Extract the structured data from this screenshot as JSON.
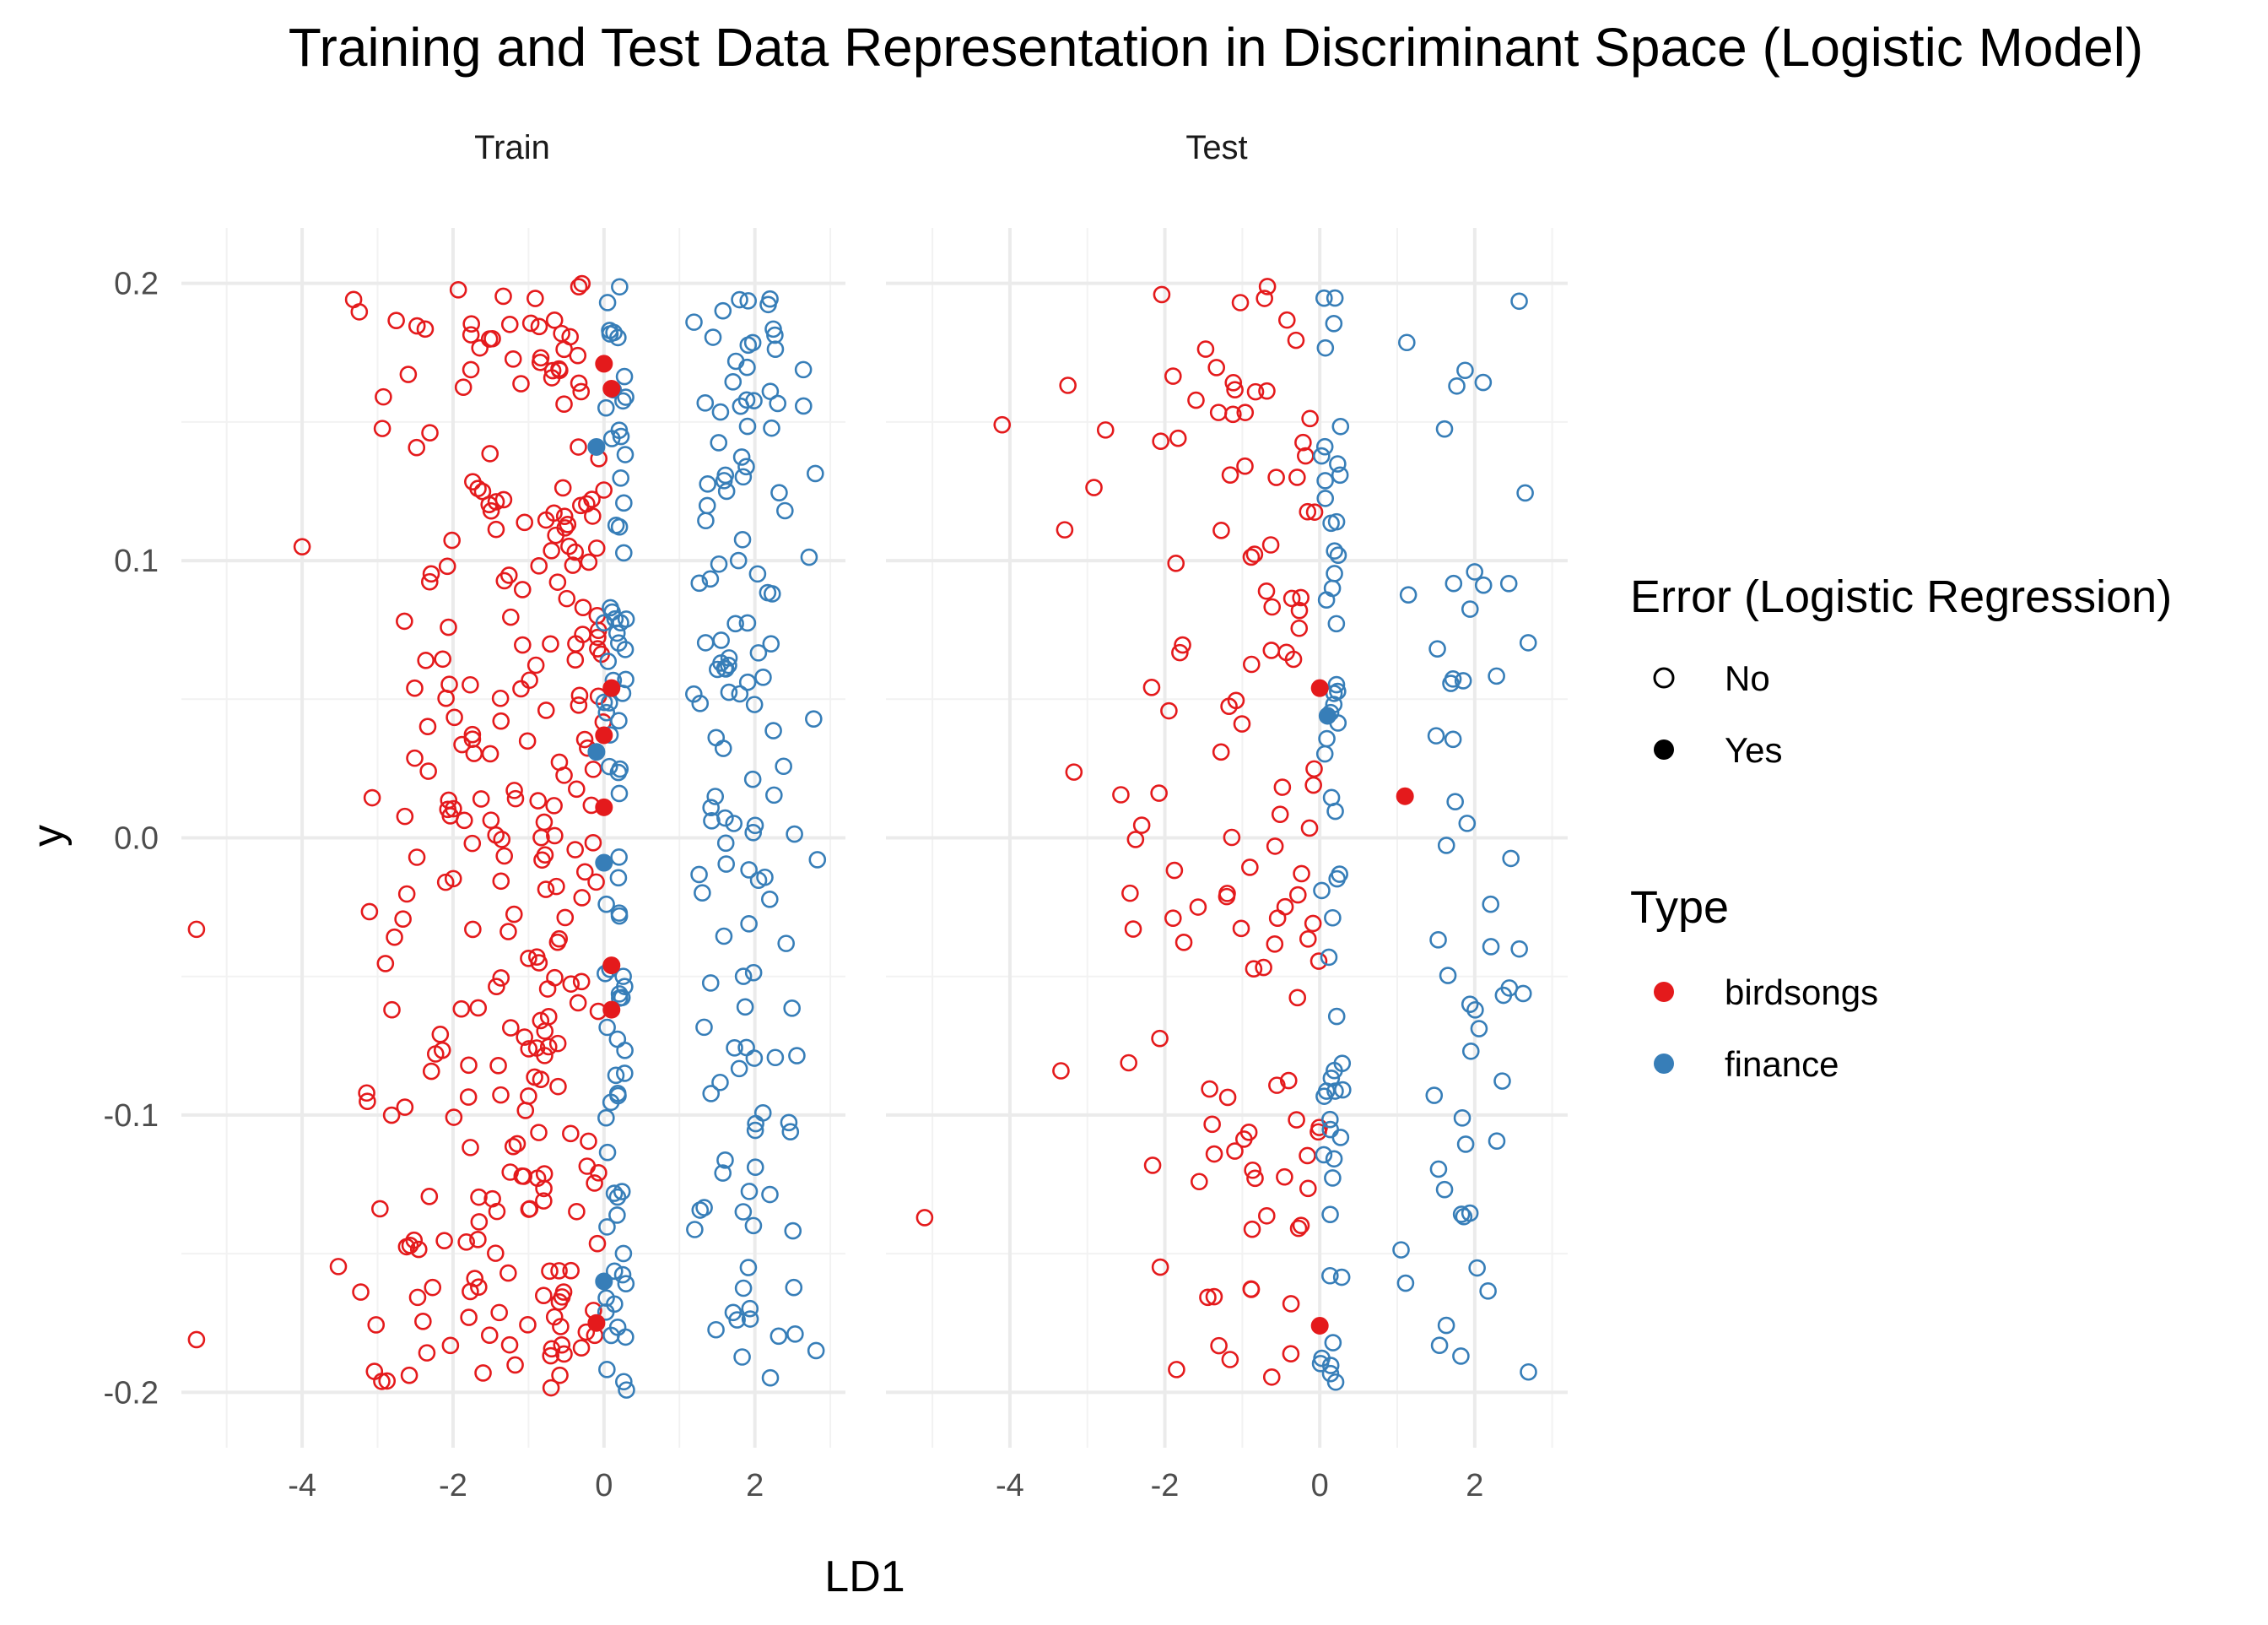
{
  "chart_data": {
    "type": "scatter",
    "title": "Training and Test Data Representation in Discriminant Space (Logistic Model)",
    "xlabel": "LD1",
    "ylabel": "y",
    "facets": [
      "Train",
      "Test"
    ],
    "xlim": [
      -5.6,
      3.2
    ],
    "ylim": [
      -0.22,
      0.22
    ],
    "xticks": [
      -4,
      -2,
      0,
      2
    ],
    "yticks": [
      0.2,
      0.1,
      0.0,
      -0.1,
      -0.2
    ],
    "xtick_labels": [
      "-4",
      "-2",
      "0",
      "2"
    ],
    "ytick_labels": [
      "0.2",
      "0.1",
      "0.0",
      "-0.1",
      "-0.2"
    ],
    "grid": true,
    "legend_placement": "right",
    "legends": {
      "error": {
        "title": "Error (Logistic Regression)",
        "entries": [
          "No",
          "Yes"
        ]
      },
      "type": {
        "title": "Type",
        "entries": [
          "birdsongs",
          "finance"
        ]
      }
    },
    "colors": {
      "birdsongs": "#e41a1c",
      "finance": "#377eb8",
      "legend_black": "#000000"
    },
    "generated": {
      "train": {
        "n_birdsongs": 290,
        "n_finance": 220,
        "seed": 17
      },
      "test": {
        "n_birdsongs": 125,
        "n_finance": 112,
        "seed": 91
      }
    },
    "series": [
      {
        "name": "Train",
        "birdsongs_outliers": [
          [
            -5.4,
            -0.033
          ],
          [
            -4.0,
            0.105
          ],
          [
            -5.4,
            -0.181
          ]
        ],
        "birdsongs_errors": [
          [
            0.0,
            0.171
          ],
          [
            0.1,
            0.162
          ],
          [
            0.1,
            0.054
          ],
          [
            0.0,
            0.037
          ],
          [
            0.0,
            0.011
          ],
          [
            0.1,
            -0.046
          ],
          [
            0.1,
            -0.062
          ],
          [
            -0.1,
            -0.175
          ]
        ],
        "finance_errors": [
          [
            -0.1,
            0.141
          ],
          [
            -0.1,
            0.031
          ],
          [
            0.0,
            -0.009
          ],
          [
            0.0,
            -0.16
          ]
        ]
      },
      {
        "name": "Test",
        "birdsongs_outliers": [
          [
            -4.1,
            0.149
          ],
          [
            -5.1,
            -0.137
          ]
        ],
        "birdsongs_errors": [
          [
            0.0,
            0.054
          ],
          [
            1.1,
            0.015
          ],
          [
            0.0,
            -0.176
          ]
        ],
        "finance_errors": [
          [
            0.1,
            0.044
          ]
        ]
      }
    ]
  }
}
